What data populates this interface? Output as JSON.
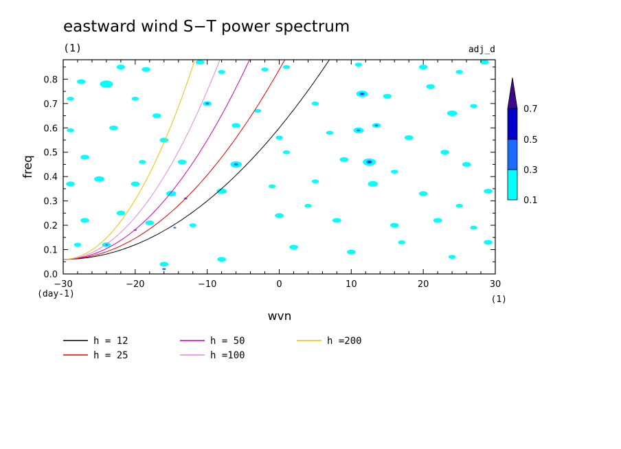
{
  "chart_data": {
    "type": "heatmap",
    "title": "eastward wind S−T power spectrum",
    "subtitle_left": "(1)",
    "subtitle_right": "adj_d",
    "xlabel": "wvn",
    "ylabel": "freq",
    "x_unit": "(1)",
    "y_unit": "(day-1)",
    "xlim": [
      -30,
      30
    ],
    "ylim": [
      0,
      0.88
    ],
    "xticks": [
      -30,
      -20,
      -10,
      0,
      10,
      20,
      30
    ],
    "yticks": [
      0.0,
      0.1,
      0.2,
      0.3,
      0.4,
      0.5,
      0.6,
      0.7,
      0.8
    ],
    "ytick_labels": [
      "0.0",
      "0.1",
      "0.2",
      "0.3",
      "0.4",
      "0.5",
      "0.6",
      "0.7",
      "0.8"
    ],
    "xtick_labels": [
      "−30",
      "−20",
      "−10",
      "0",
      "10",
      "20",
      "30"
    ],
    "colorbar": {
      "levels": [
        0.1,
        0.3,
        0.5,
        0.7
      ],
      "labels": [
        "0.1",
        "0.3",
        "0.5",
        "0.7"
      ],
      "colors": [
        "#00ffff",
        "#1a6cff",
        "#0000cc",
        "#3a0a8a"
      ]
    },
    "fill_colors": {
      "low": "#00ffff",
      "mid": "#1a6cff",
      "high": "#0000cc"
    },
    "curves": [
      {
        "name": "h = 12",
        "color": "#000000",
        "h": 12
      },
      {
        "name": "h = 25",
        "color": "#e00000",
        "h": 25
      },
      {
        "name": "h = 50",
        "color": "#cc00aa",
        "h": 50
      },
      {
        "name": "h =100",
        "color": "#dd88dd",
        "h": 100
      },
      {
        "name": "h =200",
        "color": "#f0c000",
        "h": 200
      }
    ],
    "blobs": [
      {
        "x": -27.5,
        "y": 0.79,
        "r": 0.6,
        "level": 1
      },
      {
        "x": -24,
        "y": 0.78,
        "r": 0.9,
        "level": 1
      },
      {
        "x": -22,
        "y": 0.85,
        "r": 0.6,
        "level": 1
      },
      {
        "x": -18.5,
        "y": 0.84,
        "r": 0.6,
        "level": 1
      },
      {
        "x": -11,
        "y": 0.87,
        "r": 0.6,
        "level": 1
      },
      {
        "x": -8,
        "y": 0.83,
        "r": 0.5,
        "level": 1
      },
      {
        "x": -2,
        "y": 0.84,
        "r": 0.5,
        "level": 1
      },
      {
        "x": 1,
        "y": 0.85,
        "r": 0.5,
        "level": 1
      },
      {
        "x": 11,
        "y": 0.86,
        "r": 0.5,
        "level": 1
      },
      {
        "x": 20,
        "y": 0.85,
        "r": 0.6,
        "level": 1
      },
      {
        "x": 25,
        "y": 0.83,
        "r": 0.5,
        "level": 1
      },
      {
        "x": 28.5,
        "y": 0.87,
        "r": 0.6,
        "level": 1
      },
      {
        "x": -29,
        "y": 0.72,
        "r": 0.5,
        "level": 1
      },
      {
        "x": -20,
        "y": 0.72,
        "r": 0.5,
        "level": 1
      },
      {
        "x": -17,
        "y": 0.65,
        "r": 0.6,
        "level": 1
      },
      {
        "x": -10,
        "y": 0.7,
        "r": 0.6,
        "level": 1
      },
      {
        "x": -3,
        "y": 0.67,
        "r": 0.5,
        "level": 1
      },
      {
        "x": 5,
        "y": 0.7,
        "r": 0.5,
        "level": 1
      },
      {
        "x": 11.5,
        "y": 0.74,
        "r": 0.8,
        "level": 1
      },
      {
        "x": 15,
        "y": 0.73,
        "r": 0.6,
        "level": 1
      },
      {
        "x": 21,
        "y": 0.77,
        "r": 0.6,
        "level": 1
      },
      {
        "x": 24,
        "y": 0.66,
        "r": 0.7,
        "level": 1
      },
      {
        "x": 27,
        "y": 0.69,
        "r": 0.5,
        "level": 1
      },
      {
        "x": -29,
        "y": 0.59,
        "r": 0.5,
        "level": 1
      },
      {
        "x": -23,
        "y": 0.6,
        "r": 0.6,
        "level": 1
      },
      {
        "x": -16,
        "y": 0.55,
        "r": 0.6,
        "level": 1
      },
      {
        "x": -6,
        "y": 0.61,
        "r": 0.6,
        "level": 1
      },
      {
        "x": 0,
        "y": 0.56,
        "r": 0.5,
        "level": 1
      },
      {
        "x": 7,
        "y": 0.58,
        "r": 0.5,
        "level": 1
      },
      {
        "x": 11,
        "y": 0.59,
        "r": 0.7,
        "level": 1
      },
      {
        "x": 13.5,
        "y": 0.61,
        "r": 0.6,
        "level": 1
      },
      {
        "x": 18,
        "y": 0.56,
        "r": 0.6,
        "level": 1
      },
      {
        "x": 23,
        "y": 0.5,
        "r": 0.6,
        "level": 1
      },
      {
        "x": -27,
        "y": 0.48,
        "r": 0.6,
        "level": 1
      },
      {
        "x": -19,
        "y": 0.46,
        "r": 0.5,
        "level": 1
      },
      {
        "x": -13.5,
        "y": 0.46,
        "r": 0.6,
        "level": 1
      },
      {
        "x": -6,
        "y": 0.45,
        "r": 0.8,
        "level": 1
      },
      {
        "x": 1,
        "y": 0.5,
        "r": 0.5,
        "level": 1
      },
      {
        "x": 9,
        "y": 0.47,
        "r": 0.6,
        "level": 1
      },
      {
        "x": 12.5,
        "y": 0.46,
        "r": 0.9,
        "level": 1
      },
      {
        "x": 16,
        "y": 0.42,
        "r": 0.5,
        "level": 1
      },
      {
        "x": 26,
        "y": 0.45,
        "r": 0.6,
        "level": 1
      },
      {
        "x": -29,
        "y": 0.37,
        "r": 0.6,
        "level": 1
      },
      {
        "x": -25,
        "y": 0.39,
        "r": 0.7,
        "level": 1
      },
      {
        "x": -20,
        "y": 0.37,
        "r": 0.6,
        "level": 1
      },
      {
        "x": -15,
        "y": 0.33,
        "r": 0.7,
        "level": 1
      },
      {
        "x": -8,
        "y": 0.34,
        "r": 0.7,
        "level": 1
      },
      {
        "x": -1,
        "y": 0.36,
        "r": 0.5,
        "level": 1
      },
      {
        "x": 5,
        "y": 0.38,
        "r": 0.5,
        "level": 1
      },
      {
        "x": 13,
        "y": 0.37,
        "r": 0.7,
        "level": 1
      },
      {
        "x": 20,
        "y": 0.33,
        "r": 0.6,
        "level": 1
      },
      {
        "x": 25,
        "y": 0.28,
        "r": 0.5,
        "level": 1
      },
      {
        "x": 29,
        "y": 0.34,
        "r": 0.6,
        "level": 1
      },
      {
        "x": -27,
        "y": 0.22,
        "r": 0.6,
        "level": 1
      },
      {
        "x": -22,
        "y": 0.25,
        "r": 0.6,
        "level": 1
      },
      {
        "x": -18,
        "y": 0.21,
        "r": 0.6,
        "level": 1
      },
      {
        "x": -12,
        "y": 0.2,
        "r": 0.5,
        "level": 1
      },
      {
        "x": 0,
        "y": 0.24,
        "r": 0.6,
        "level": 1
      },
      {
        "x": 4,
        "y": 0.28,
        "r": 0.5,
        "level": 1
      },
      {
        "x": 8,
        "y": 0.22,
        "r": 0.6,
        "level": 1
      },
      {
        "x": 16,
        "y": 0.2,
        "r": 0.6,
        "level": 1
      },
      {
        "x": 22,
        "y": 0.22,
        "r": 0.6,
        "level": 1
      },
      {
        "x": 27,
        "y": 0.19,
        "r": 0.5,
        "level": 1
      },
      {
        "x": -28,
        "y": 0.12,
        "r": 0.5,
        "level": 1
      },
      {
        "x": -24,
        "y": 0.12,
        "r": 0.6,
        "level": 1
      },
      {
        "x": -16,
        "y": 0.04,
        "r": 0.6,
        "level": 1
      },
      {
        "x": -8,
        "y": 0.06,
        "r": 0.6,
        "level": 1
      },
      {
        "x": 2,
        "y": 0.11,
        "r": 0.6,
        "level": 1
      },
      {
        "x": 10,
        "y": 0.09,
        "r": 0.6,
        "level": 1
      },
      {
        "x": 17,
        "y": 0.13,
        "r": 0.5,
        "level": 1
      },
      {
        "x": 24,
        "y": 0.07,
        "r": 0.5,
        "level": 1
      },
      {
        "x": 29,
        "y": 0.13,
        "r": 0.6,
        "level": 1
      },
      {
        "x": -10,
        "y": 0.7,
        "r": 0.25,
        "level": 2
      },
      {
        "x": 11.5,
        "y": 0.74,
        "r": 0.35,
        "level": 2
      },
      {
        "x": 11,
        "y": 0.59,
        "r": 0.25,
        "level": 2
      },
      {
        "x": 13.5,
        "y": 0.61,
        "r": 0.25,
        "level": 2
      },
      {
        "x": -6,
        "y": 0.45,
        "r": 0.3,
        "level": 2
      },
      {
        "x": 12.5,
        "y": 0.46,
        "r": 0.4,
        "level": 2
      },
      {
        "x": -13,
        "y": 0.31,
        "r": 0.25,
        "level": 2
      },
      {
        "x": -14.5,
        "y": 0.19,
        "r": 0.2,
        "level": 2
      },
      {
        "x": -24,
        "y": 0.12,
        "r": 0.2,
        "level": 2
      },
      {
        "x": -16,
        "y": 0.02,
        "r": 0.25,
        "level": 2
      },
      {
        "x": -20,
        "y": 0.18,
        "r": 0.2,
        "level": 2
      },
      {
        "x": 12.5,
        "y": 0.46,
        "r": 0.15,
        "level": 3
      },
      {
        "x": 11.5,
        "y": 0.74,
        "r": 0.12,
        "level": 3
      }
    ],
    "legend_placement": "bottom",
    "grid": false
  }
}
